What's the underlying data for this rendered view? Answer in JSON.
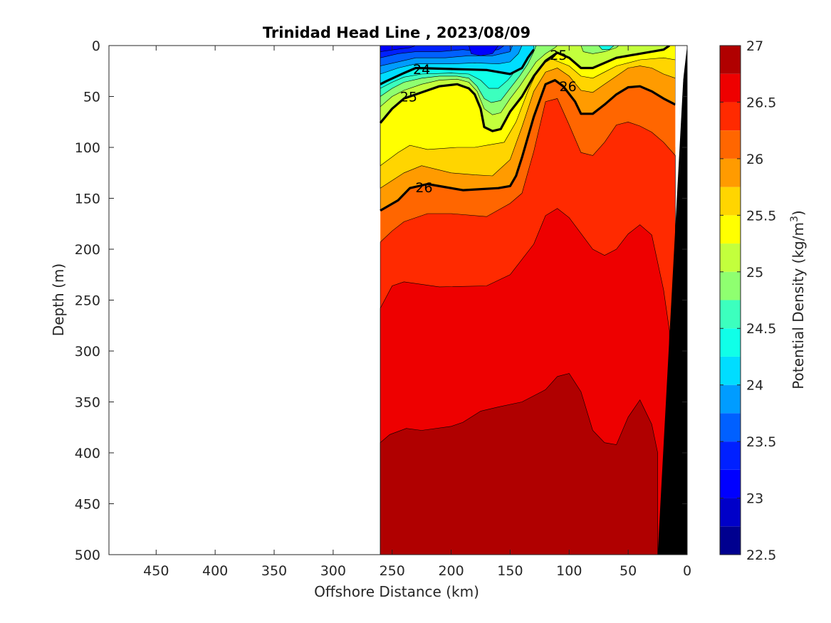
{
  "chart_data": {
    "type": "contour",
    "title": "Trinidad Head Line , 2023/08/09",
    "xlabel": "Offshore Distance (km)",
    "ylabel": "Depth (m)",
    "colorbar_label": "Potential Density (kg/m",
    "colorbar_label_sup": "3",
    "colorbar_label_close": ")",
    "x_axis_reversed": true,
    "xlim": [
      0,
      490
    ],
    "ylim": [
      0,
      500
    ],
    "y_axis_reversed": true,
    "x_ticks": [
      450,
      400,
      350,
      300,
      250,
      200,
      150,
      100,
      50,
      0
    ],
    "x_tick_labels": [
      "450",
      "400",
      "350",
      "300",
      "250",
      "200",
      "150",
      "100",
      "50",
      "0"
    ],
    "y_ticks": [
      0,
      50,
      100,
      150,
      200,
      250,
      300,
      350,
      400,
      450,
      500
    ],
    "y_tick_labels": [
      "0",
      "50",
      "100",
      "150",
      "200",
      "250",
      "300",
      "350",
      "400",
      "450",
      "500"
    ],
    "colorbar_range": [
      22.5,
      27
    ],
    "colorbar_levels": [
      22.5,
      22.75,
      23,
      23.25,
      23.5,
      23.75,
      24,
      24.25,
      24.5,
      24.75,
      25,
      25.25,
      25.5,
      25.75,
      26,
      26.25,
      26.5,
      26.75,
      27
    ],
    "colorbar_colors": [
      "#00008f",
      "#0000c8",
      "#0000ff",
      "#0020ff",
      "#0060ff",
      "#009cff",
      "#00ddff",
      "#10ffe8",
      "#3cffbe",
      "#8fff70",
      "#c3ff3c",
      "#ffff00",
      "#ffd500",
      "#ff9b00",
      "#ff6600",
      "#ff2a00",
      "#ee0000",
      "#b00000"
    ],
    "colorbar_tick_values": [
      22.5,
      23,
      23.5,
      24,
      24.5,
      25,
      25.5,
      26,
      26.5,
      27
    ],
    "colorbar_tick_labels": [
      "22.5",
      "23",
      "23.5",
      "24",
      "24.5",
      "25",
      "25.5",
      "26",
      "26.5",
      "27"
    ],
    "data_extent_km": [
      10,
      260
    ],
    "labeled_contours": [
      {
        "level": 24,
        "label": "24",
        "points": [
          [
            260,
            38
          ],
          [
            255,
            35
          ],
          [
            240,
            27
          ],
          [
            230,
            22
          ],
          [
            200,
            23
          ],
          [
            170,
            24
          ],
          [
            150,
            28
          ],
          [
            140,
            22
          ],
          [
            135,
            12
          ],
          [
            130,
            4
          ]
        ]
      },
      {
        "level": 25,
        "label": "25",
        "points": [
          [
            260,
            76
          ],
          [
            250,
            62
          ],
          [
            240,
            52
          ],
          [
            230,
            48
          ],
          [
            210,
            40
          ],
          [
            195,
            38
          ],
          [
            185,
            42
          ],
          [
            180,
            48
          ],
          [
            175,
            62
          ],
          [
            172,
            80
          ],
          [
            165,
            84
          ],
          [
            158,
            82
          ],
          [
            150,
            65
          ],
          [
            140,
            50
          ],
          [
            130,
            30
          ],
          [
            120,
            15
          ],
          [
            110,
            7
          ],
          [
            100,
            12
          ],
          [
            90,
            22
          ],
          [
            80,
            22
          ],
          [
            60,
            12
          ],
          [
            40,
            8
          ],
          [
            20,
            4
          ],
          [
            15,
            0
          ]
        ]
      },
      {
        "level": 26,
        "label": "26",
        "points": [
          [
            260,
            162
          ],
          [
            245,
            152
          ],
          [
            235,
            140
          ],
          [
            220,
            136
          ],
          [
            190,
            142
          ],
          [
            160,
            140
          ],
          [
            150,
            138
          ],
          [
            145,
            128
          ],
          [
            140,
            110
          ],
          [
            130,
            70
          ],
          [
            120,
            38
          ],
          [
            112,
            34
          ],
          [
            105,
            40
          ],
          [
            95,
            55
          ],
          [
            90,
            67
          ],
          [
            80,
            67
          ],
          [
            70,
            58
          ],
          [
            60,
            48
          ],
          [
            50,
            41
          ],
          [
            40,
            40
          ],
          [
            30,
            45
          ],
          [
            20,
            52
          ],
          [
            10,
            58
          ]
        ]
      }
    ],
    "contour_label_positions": [
      {
        "label": "24",
        "x": 225,
        "y": 23
      },
      {
        "label": "25",
        "x": 109,
        "y": 9
      },
      {
        "label": "25",
        "x": 236,
        "y": 50
      },
      {
        "label": "26",
        "x": 101,
        "y": 40
      },
      {
        "label": "26",
        "x": 223,
        "y": 139
      }
    ],
    "fill_regions": [
      {
        "value_band": "26.75-27",
        "color": "#b00000",
        "boundary": [
          [
            260,
            390
          ],
          [
            252,
            382
          ],
          [
            238,
            376
          ],
          [
            225,
            378
          ],
          [
            200,
            374
          ],
          [
            190,
            370
          ],
          [
            175,
            359
          ],
          [
            160,
            355
          ],
          [
            140,
            350
          ],
          [
            120,
            338
          ],
          [
            110,
            325
          ],
          [
            100,
            322
          ],
          [
            90,
            340
          ],
          [
            80,
            378
          ],
          [
            70,
            390
          ],
          [
            60,
            392
          ],
          [
            50,
            365
          ],
          [
            40,
            348
          ],
          [
            30,
            372
          ],
          [
            25,
            400
          ]
        ]
      },
      {
        "value_band": "26.5-26.75",
        "color": "#ee0000",
        "boundary": [
          [
            260,
            258
          ],
          [
            250,
            236
          ],
          [
            240,
            232
          ],
          [
            210,
            237
          ],
          [
            170,
            236
          ],
          [
            150,
            225
          ],
          [
            130,
            195
          ],
          [
            120,
            167
          ],
          [
            110,
            160
          ],
          [
            100,
            169
          ],
          [
            80,
            200
          ],
          [
            70,
            206
          ],
          [
            60,
            200
          ],
          [
            50,
            185
          ],
          [
            40,
            176
          ],
          [
            30,
            186
          ],
          [
            20,
            240
          ],
          [
            15,
            280
          ]
        ]
      },
      {
        "value_band": "26.25-26.5",
        "color": "#ff2a00",
        "boundary": [
          [
            260,
            193
          ],
          [
            250,
            182
          ],
          [
            240,
            173
          ],
          [
            220,
            165
          ],
          [
            200,
            165
          ],
          [
            170,
            168
          ],
          [
            150,
            155
          ],
          [
            140,
            145
          ],
          [
            130,
            104
          ],
          [
            120,
            55
          ],
          [
            110,
            52
          ],
          [
            100,
            78
          ],
          [
            90,
            105
          ],
          [
            80,
            108
          ],
          [
            70,
            95
          ],
          [
            60,
            78
          ],
          [
            50,
            75
          ],
          [
            40,
            79
          ],
          [
            30,
            85
          ],
          [
            20,
            95
          ],
          [
            10,
            108
          ]
        ]
      }
    ]
  }
}
